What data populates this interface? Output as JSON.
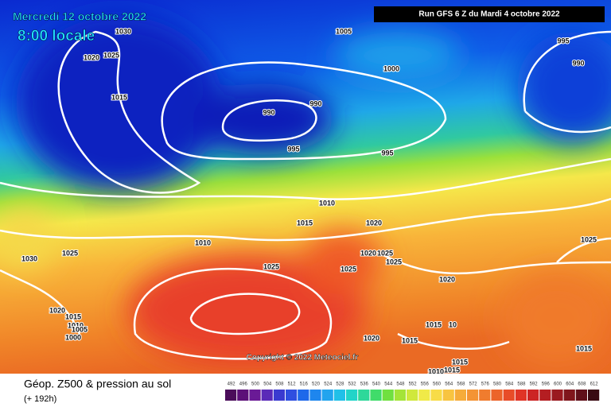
{
  "header": {
    "date": "Mercredi 12 octobre 2022",
    "time": "8:00 locale",
    "run": "Run GFS 6 Z du Mardi 4 octobre 2022"
  },
  "copyright": "Copyright © 2022 Meteociel.fr",
  "footer": {
    "title": "Géop. Z500 & pression au sol",
    "lead": "(+ 192h)"
  },
  "scale": [
    492,
    496,
    500,
    504,
    508,
    512,
    516,
    520,
    524,
    528,
    532,
    536,
    540,
    544,
    548,
    552,
    556,
    560,
    564,
    568,
    572,
    576,
    580,
    584,
    588,
    592,
    596,
    600,
    604,
    608,
    612
  ],
  "isobar_labels": [
    "1030",
    "1020",
    "1025",
    "1015",
    "1005",
    "1000",
    "995",
    "990",
    "990",
    "990",
    "995",
    "995",
    "1010",
    "1015",
    "1020",
    "1010",
    "1030",
    "1025",
    "1025",
    "1020",
    "1025",
    "1025",
    "1025",
    "1020",
    "1025",
    "1020",
    "1015",
    "1010",
    "1005",
    "1000",
    "1015",
    "10",
    "1020",
    "1015",
    "1015",
    "1015",
    "1015",
    "1010"
  ]
}
